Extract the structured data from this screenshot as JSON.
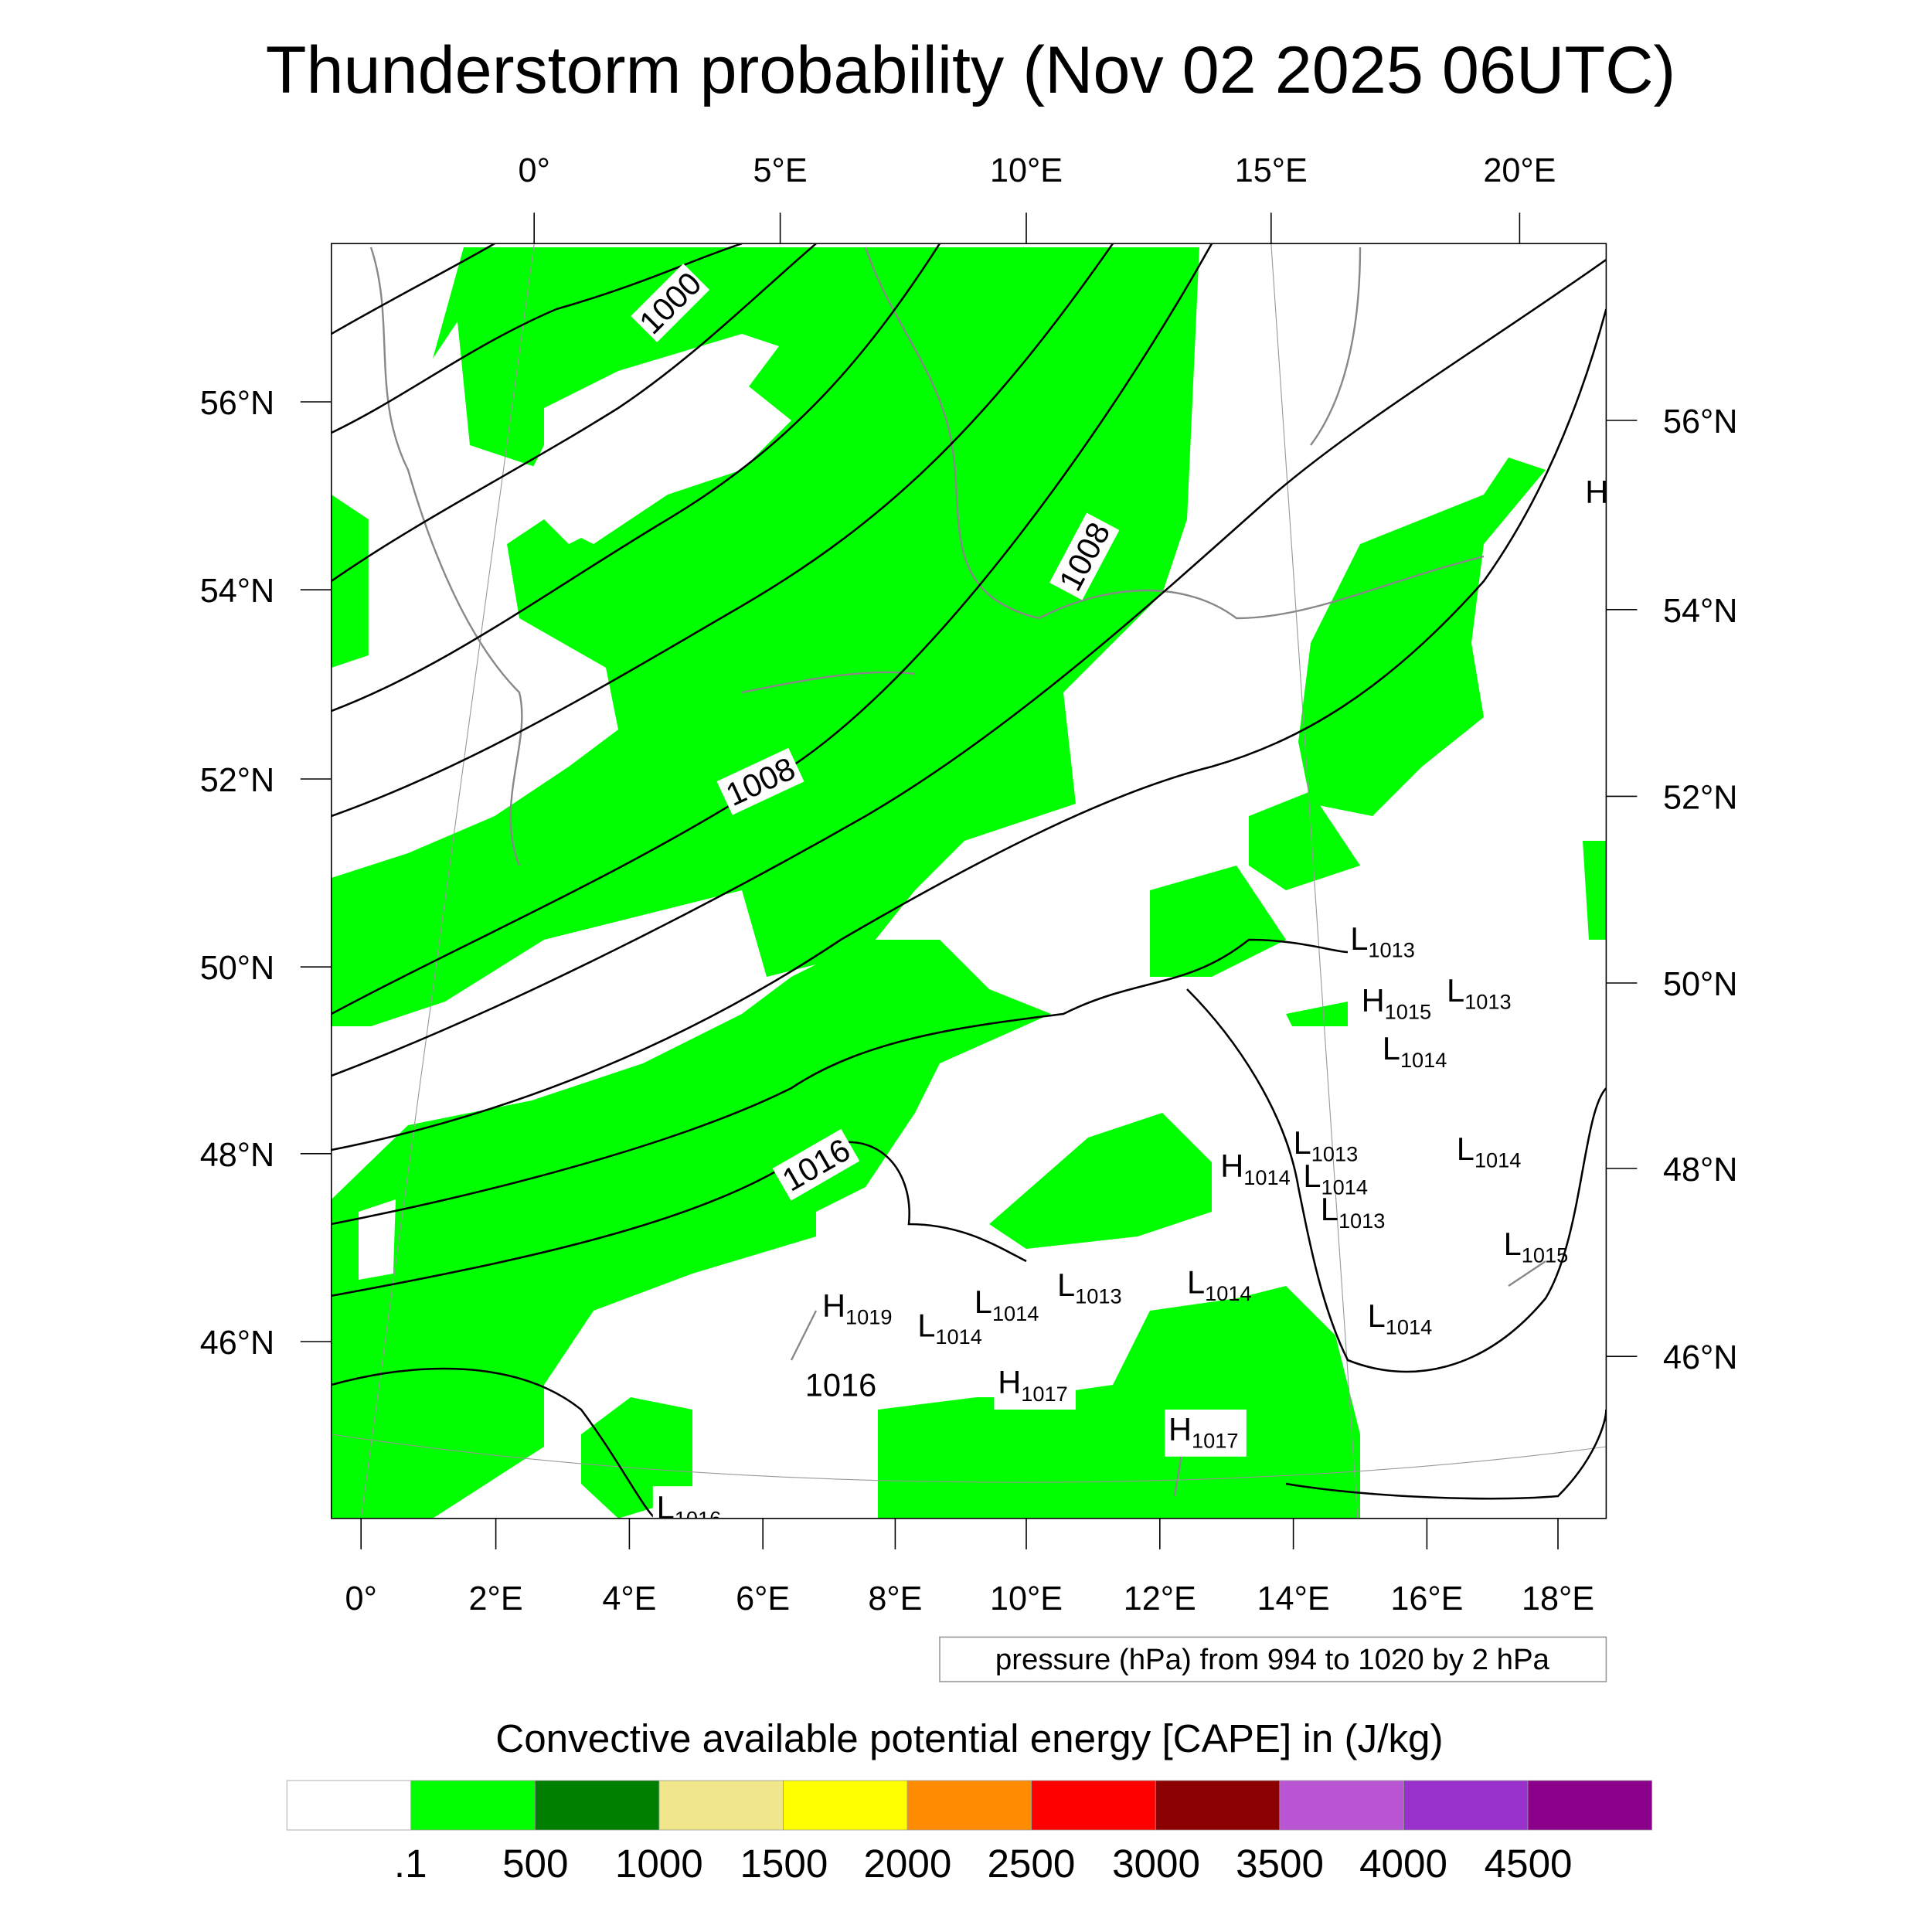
{
  "title": "Thunderstorm probability (Nov 02 2025 06UTC)",
  "top_lon_labels": [
    "0°",
    "5°E",
    "10°E",
    "15°E",
    "20°E"
  ],
  "bottom_lon_labels": [
    "0°",
    "2°E",
    "4°E",
    "6°E",
    "8°E",
    "10°E",
    "12°E",
    "14°E",
    "16°E",
    "18°E"
  ],
  "left_lat_labels": [
    "56°N",
    "54°N",
    "52°N",
    "50°N",
    "48°N",
    "46°N"
  ],
  "right_lat_labels": [
    "56°N",
    "54°N",
    "52°N",
    "50°N",
    "48°N",
    "46°N"
  ],
  "contour_labels": [
    "1000",
    "1008",
    "1008",
    "1016",
    "1016"
  ],
  "pressure_centers": [
    {
      "type": "H",
      "value": "",
      "note": "edge"
    },
    {
      "type": "L",
      "value": "1013"
    },
    {
      "type": "H",
      "value": "1015"
    },
    {
      "type": "L",
      "value": "1013"
    },
    {
      "type": "L",
      "value": "1014"
    },
    {
      "type": "L",
      "value": "1013"
    },
    {
      "type": "H",
      "value": "1014"
    },
    {
      "type": "L",
      "value": "1014"
    },
    {
      "type": "L",
      "value": "1014"
    },
    {
      "type": "L",
      "value": "1013"
    },
    {
      "type": "L",
      "value": "1015"
    },
    {
      "type": "L",
      "value": "1013"
    },
    {
      "type": "L",
      "value": "1014"
    },
    {
      "type": "L",
      "value": "1014"
    },
    {
      "type": "H",
      "value": "1019"
    },
    {
      "type": "L",
      "value": "1014"
    },
    {
      "type": "L",
      "value": "1014"
    },
    {
      "type": "H",
      "value": "1017"
    },
    {
      "type": "H",
      "value": "1017"
    },
    {
      "type": "L",
      "value": "1016"
    }
  ],
  "contour_note": "pressure (hPa) from 994 to 1020 by 2 hPa",
  "colorbar": {
    "title": "Convective available potential energy [CAPE] in (J/kg)",
    "colors": [
      "#ffffff",
      "#00ff00",
      "#008000",
      "#f0e68c",
      "#ffff00",
      "#ff8c00",
      "#ff0000",
      "#8b0000",
      "#ba55d3",
      "#9932cc",
      "#8b008b"
    ],
    "labels": [
      ".1",
      "500",
      "1000",
      "1500",
      "2000",
      "2500",
      "3000",
      "3500",
      "4000",
      "4500"
    ]
  },
  "accent_colors": {
    "cape_low": "#00ff00",
    "coastline": "#888888"
  }
}
